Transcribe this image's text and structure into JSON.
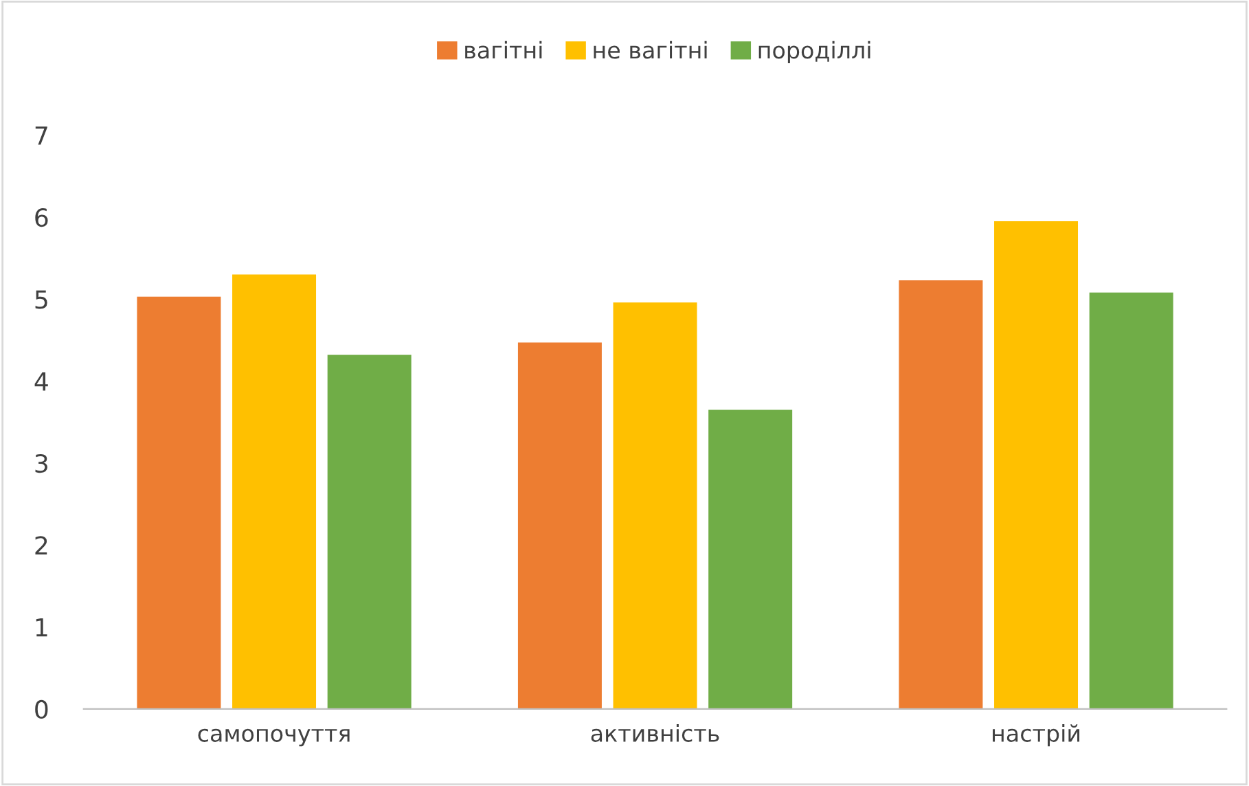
{
  "chart_data": {
    "type": "bar",
    "categories": [
      "самопочуття",
      "активність",
      "настрій"
    ],
    "series": [
      {
        "name": "вагітні",
        "color": "#ed7d31",
        "values": [
          5.03,
          4.47,
          5.23
        ]
      },
      {
        "name": "не вагітні",
        "color": "#ffc000",
        "values": [
          5.3,
          4.96,
          5.95
        ]
      },
      {
        "name": "породіллі",
        "color": "#70ad47",
        "values": [
          4.32,
          3.65,
          5.08
        ]
      }
    ],
    "ylim": [
      0,
      7
    ],
    "yticks": [
      0,
      1,
      2,
      3,
      4,
      5,
      6,
      7
    ],
    "grid": false,
    "legend": "top"
  }
}
